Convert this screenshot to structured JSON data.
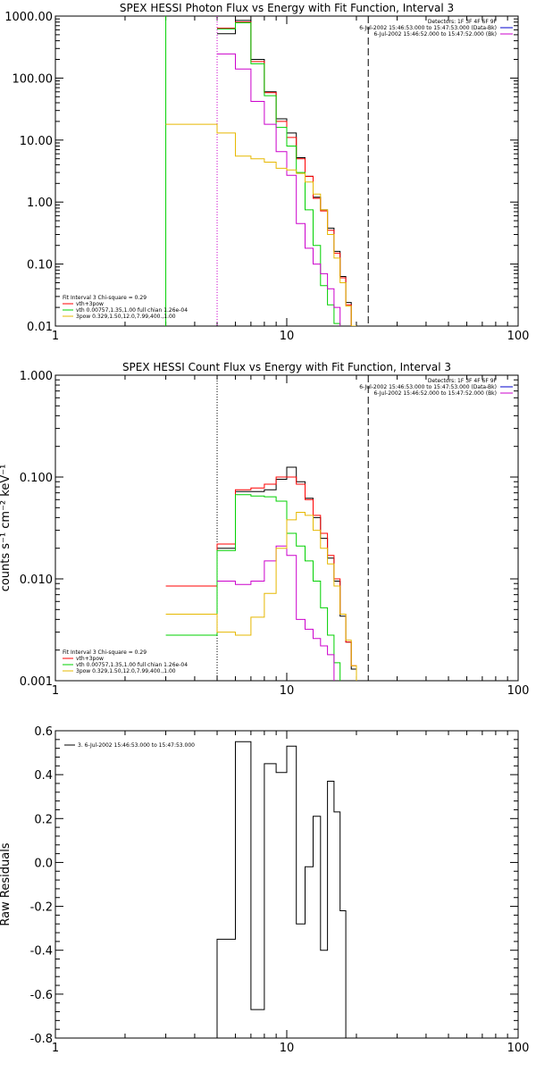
{
  "chart_data": [
    {
      "type": "line",
      "title": "SPEX HESSI Photon Flux vs Energy with Fit Function, Interval 3",
      "xlabel": "",
      "ylabel": "",
      "xscale": "log",
      "yscale": "log",
      "xlim": [
        1,
        100
      ],
      "ylim": [
        0.01,
        1000
      ],
      "x_tick_labels": [
        "1",
        "10",
        "100"
      ],
      "y_tick_labels": [
        "0.01",
        "0.10",
        "1.00",
        "10.00",
        "100.00",
        "1000.00"
      ],
      "header_lines": [
        "Detectors: 1F 3F 4F 6F 9F",
        "6-Jul-2002 15:46:53.000 to 15:47:53.000 (Data-Bk)",
        "6-Jul-2002 15:46:52.000 to 15:47:52.000 (Bk)"
      ],
      "legend_lines": [
        "Fit Interval 3   Chi-square = 0.29",
        "vth+3pow",
        "vth 0.00757,1.35,1.00  full chian 1.26e-04",
        "3pow 0.329,1.50,12.0,7.99,400.,1.00"
      ],
      "legend_position": "bottom-left",
      "vlines": [
        {
          "x": 3.0,
          "style": "solid",
          "color": "#00d000"
        },
        {
          "x": 5.0,
          "style": "dotted",
          "color": "#cc00cc"
        },
        {
          "x": 22.5,
          "style": "dashed",
          "color": "#000000"
        }
      ],
      "x_edges": [
        3.0,
        5.0,
        6.0,
        7.0,
        8.0,
        9.0,
        10.0,
        11.0,
        12.0,
        13.0,
        14.0,
        15.0,
        16.0,
        17.0,
        18.0,
        19.0,
        20.0,
        21.0,
        22.0,
        23.0,
        24.0,
        25.0
      ],
      "series": [
        {
          "color": "#000000",
          "values": [
            null,
            520,
            850,
            200,
            60,
            22,
            13,
            5.2,
            2.6,
            1.2,
            0.75,
            0.38,
            0.16,
            0.063,
            0.024,
            null,
            null,
            null,
            null,
            null,
            null
          ]
        },
        {
          "color": "#ff0000",
          "values": [
            null,
            640,
            800,
            185,
            58,
            20,
            11,
            5.0,
            2.6,
            1.15,
            0.72,
            0.35,
            0.15,
            0.06,
            0.022,
            null,
            null,
            null,
            null,
            null,
            null
          ]
        },
        {
          "color": "#00d000",
          "values": [
            null,
            620,
            780,
            170,
            52,
            16,
            8.0,
            3.0,
            0.75,
            0.2,
            0.045,
            0.022,
            0.011,
            null,
            null,
            null,
            null,
            null,
            null,
            null,
            null
          ]
        },
        {
          "color": "#cc00cc",
          "values": [
            null,
            245,
            140,
            42,
            18,
            6.5,
            2.7,
            0.45,
            0.18,
            0.1,
            0.07,
            0.04,
            0.02,
            null,
            null,
            null,
            null,
            null,
            null,
            null,
            null
          ]
        },
        {
          "color": "#e6b800",
          "values": [
            18,
            13,
            5.5,
            5.0,
            4.4,
            3.5,
            3.3,
            2.9,
            2.1,
            1.35,
            0.75,
            0.3,
            0.125,
            0.05,
            0.021,
            0.01,
            null,
            null,
            null,
            null,
            null
          ]
        }
      ]
    },
    {
      "type": "line",
      "title": "SPEX HESSI Count Flux vs Energy with Fit Function, Interval 3",
      "xlabel": "",
      "ylabel": "counts s⁻¹ cm⁻² keV⁻¹",
      "xscale": "log",
      "yscale": "log",
      "xlim": [
        1,
        100
      ],
      "ylim": [
        0.001,
        1
      ],
      "x_tick_labels": [
        "1",
        "10",
        "100"
      ],
      "y_tick_labels": [
        "0.001",
        "0.010",
        "0.100",
        "1.000"
      ],
      "header_lines": [
        "Detectors: 1F 3F 4F 6F 9F",
        "6-Jul-2002 15:46:53.000 to 15:47:53.000 (Data-Bk)",
        "6-Jul-2002 15:46:52.000 to 15:47:52.000 (Bk)"
      ],
      "legend_lines": [
        "Fit Interval 3   Chi-square = 0.29",
        "vth+3pow",
        "vth 0.00757,1.35,1.00  full chian 1.26e-04",
        "3pow 0.329,1.50,12.0,7.99,400.,1.00"
      ],
      "legend_position": "bottom-left",
      "vlines": [
        {
          "x": 5.0,
          "style": "dotted",
          "color": "#000000"
        },
        {
          "x": 22.5,
          "style": "dashed",
          "color": "#000000"
        }
      ],
      "x_edges": [
        3.0,
        5.0,
        6.0,
        7.0,
        8.0,
        9.0,
        10.0,
        11.0,
        12.0,
        13.0,
        14.0,
        15.0,
        16.0,
        17.0,
        18.0,
        19.0,
        20.0,
        21.0,
        22.0,
        23.0,
        24.0,
        25.0
      ],
      "series": [
        {
          "color": "#000000",
          "values": [
            null,
            0.02,
            0.072,
            0.072,
            0.075,
            0.095,
            0.125,
            0.09,
            0.062,
            0.04,
            0.025,
            0.016,
            0.0095,
            0.0043,
            0.0024,
            0.0013,
            null,
            null,
            null,
            null,
            null
          ]
        },
        {
          "color": "#ff0000",
          "values": [
            0.0085,
            0.022,
            0.075,
            0.078,
            0.085,
            0.1,
            0.1,
            0.085,
            0.06,
            0.042,
            0.028,
            0.017,
            0.01,
            0.0045,
            0.0024,
            0.0014,
            null,
            null,
            null,
            null,
            null
          ]
        },
        {
          "color": "#00d000",
          "values": [
            0.0028,
            0.019,
            0.067,
            0.065,
            0.064,
            0.058,
            0.028,
            0.021,
            0.015,
            0.0095,
            0.0052,
            0.0028,
            0.0015,
            null,
            null,
            null,
            null,
            null,
            null,
            null,
            null
          ]
        },
        {
          "color": "#cc00cc",
          "values": [
            null,
            0.0095,
            0.0088,
            0.0095,
            0.015,
            0.021,
            0.017,
            0.004,
            0.0032,
            0.0026,
            0.0022,
            0.0018,
            null,
            null,
            null,
            null,
            null,
            null,
            null,
            null,
            null
          ]
        },
        {
          "color": "#e6b800",
          "values": [
            0.0045,
            0.003,
            0.0028,
            0.0042,
            0.0072,
            0.02,
            0.038,
            0.045,
            0.042,
            0.03,
            0.02,
            0.014,
            0.0085,
            0.0045,
            0.0025,
            0.0014,
            null,
            null,
            null,
            null,
            null
          ]
        }
      ]
    },
    {
      "type": "line",
      "title": "",
      "xlabel": "",
      "ylabel": "Raw Residuals",
      "xscale": "log",
      "yscale": "linear",
      "xlim": [
        1,
        100
      ],
      "ylim": [
        -0.8,
        0.6
      ],
      "x_tick_labels": [
        "1",
        "10",
        "100"
      ],
      "y_tick_labels": [
        "-0.8",
        "-0.6",
        "-0.4",
        "-0.2",
        "0.0",
        "0.2",
        "0.4",
        "0.6"
      ],
      "legend_lines": [
        "3.  6-Jul-2002 15:46:53.000 to 15:47:53.000"
      ],
      "legend_position": "top-left",
      "x_edges": [
        5.0,
        6.0,
        7.0,
        8.0,
        9.0,
        10.0,
        11.0,
        12.0,
        13.0,
        14.0,
        15.0,
        16.0,
        17.0,
        18.0,
        19.0,
        20.0,
        21.0,
        22.0
      ],
      "series": [
        {
          "color": "#000000",
          "name": "3.  6-Jul-2002 15:46:53.000 to 15:47:53.000",
          "values": [
            -0.35,
            0.55,
            -0.67,
            0.45,
            0.41,
            0.53,
            -0.28,
            -0.02,
            0.21,
            -0.4,
            0.37,
            0.23,
            -0.22,
            null,
            null,
            null,
            null
          ]
        }
      ]
    }
  ]
}
